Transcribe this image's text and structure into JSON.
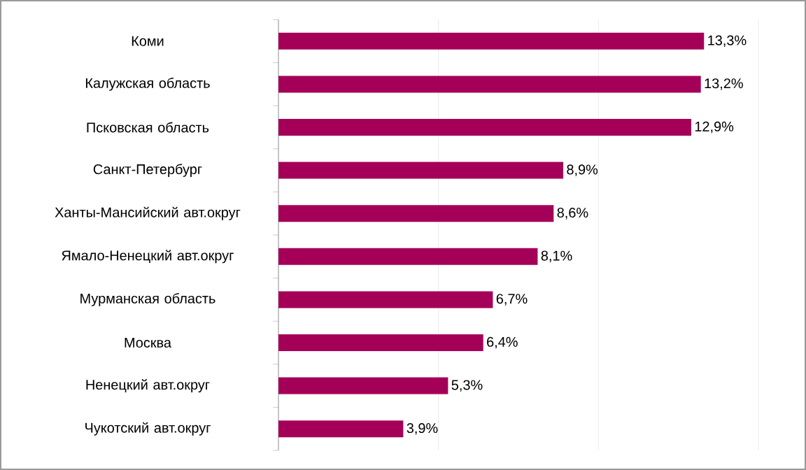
{
  "chart_data": {
    "type": "bar",
    "orientation": "horizontal",
    "categories": [
      "Коми",
      "Калужская область",
      "Псковская область",
      "Санкт-Петербург",
      "Ханты-Мансийский  авт.округ",
      "Ямало-Ненецкий авт.округ",
      "Мурманская область",
      "Москва",
      "Ненецкий  авт.округ",
      "Чукотский авт.округ"
    ],
    "values": [
      13.3,
      13.2,
      12.9,
      8.9,
      8.6,
      8.1,
      6.7,
      6.4,
      5.3,
      3.9
    ],
    "value_labels": [
      "13,3%",
      "13,2%",
      "12,9%",
      "8,9%",
      "8,6%",
      "8,1%",
      "6,7%",
      "6,4%",
      "5,3%",
      "3,9%"
    ],
    "color": "#a50058",
    "xlim": [
      0,
      15
    ],
    "xticks": [
      {
        "value": 0,
        "label": null
      },
      {
        "value": 5,
        "label": null
      },
      {
        "value": 10,
        "label": null
      },
      {
        "value": 15,
        "label": null
      }
    ],
    "grid": "x",
    "tick_labels": "y"
  }
}
